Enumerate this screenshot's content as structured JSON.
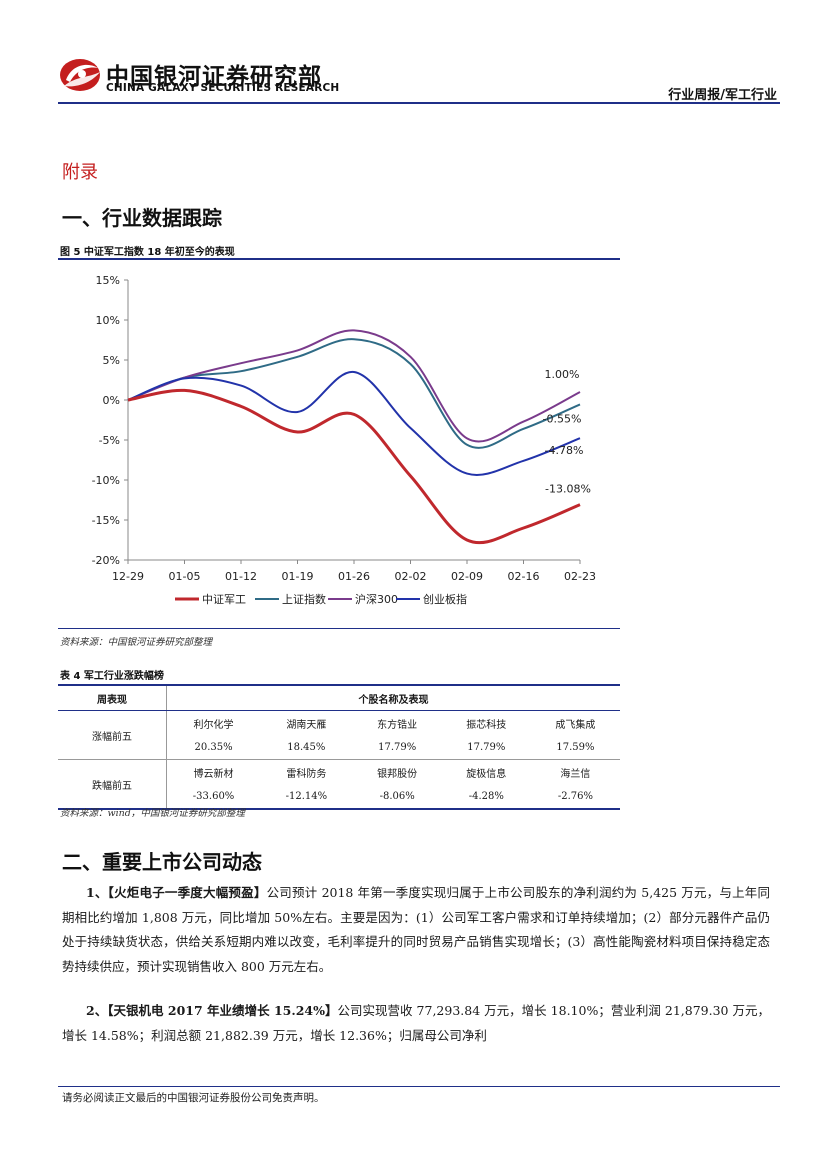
{
  "header": {
    "brand_cn": "中国银河证券研究部",
    "brand_en": "CHINA GALAXY SECURITIES RESEARCH",
    "tag": "行业周报/军工行业",
    "brand_color": "#c41e1e",
    "rule_color": "#1f2f88"
  },
  "appendix_label": "附录",
  "section1": {
    "title": "一、行业数据跟踪",
    "figure_caption": "图 5 中证军工指数 18 年初至今的表现",
    "figure_source": "资料来源：中国银河证券研究部整理",
    "table_caption": "表 4 军工行业涨跌幅榜",
    "table_source": "资料来源：wind，中国银河证券研究部整理"
  },
  "chart_data": {
    "type": "line",
    "title": "",
    "xlabel": "",
    "ylabel": "",
    "x": [
      "12-29",
      "01-05",
      "01-12",
      "01-19",
      "01-26",
      "02-02",
      "02-09",
      "02-16",
      "02-23"
    ],
    "y_ticks": [
      "15%",
      "10%",
      "5%",
      "0%",
      "-5%",
      "-10%",
      "-15%",
      "-20%"
    ],
    "ylim": [
      -20,
      15
    ],
    "grid": false,
    "legend_position": "bottom",
    "series": [
      {
        "name": "中证军工",
        "color": "#c0282d",
        "values": [
          0,
          1.2,
          -0.8,
          -4.0,
          -1.8,
          -9.5,
          -17.5,
          -16.0,
          -13.08
        ],
        "end_label": "-13.08%"
      },
      {
        "name": "上证指数",
        "color": "#2f6b86",
        "values": [
          0,
          2.8,
          3.6,
          5.4,
          7.6,
          4.5,
          -5.6,
          -3.6,
          -0.55
        ],
        "end_label": "-0.55%"
      },
      {
        "name": "沪深300",
        "color": "#7a3b8c",
        "values": [
          0,
          2.8,
          4.6,
          6.2,
          8.7,
          5.4,
          -4.8,
          -2.7,
          1.0
        ],
        "end_label": "1.00%"
      },
      {
        "name": "创业板指",
        "color": "#2233aa",
        "values": [
          0,
          2.7,
          1.8,
          -1.5,
          3.5,
          -3.5,
          -9.2,
          -7.6,
          -4.78
        ],
        "end_label": "-4.78%"
      }
    ]
  },
  "table": {
    "headers": [
      "周表现",
      "个股名称及表现"
    ],
    "rows": [
      {
        "label": "涨幅前五",
        "names": [
          "利尔化学",
          "湖南天雁",
          "东方锆业",
          "振芯科技",
          "成飞集成"
        ],
        "values": [
          "20.35%",
          "18.45%",
          "17.79%",
          "17.79%",
          "17.59%"
        ]
      },
      {
        "label": "跌幅前五",
        "names": [
          "博云新材",
          "雷科防务",
          "银邦股份",
          "旋极信息",
          "海兰信"
        ],
        "values": [
          "-33.60%",
          "-12.14%",
          "-8.06%",
          "-4.28%",
          "-2.76%"
        ]
      }
    ]
  },
  "section2": {
    "title": "二、重要上市公司动态",
    "item1_head": "1、【火炬电子一季度大幅预盈】",
    "item1_body": "公司预计 2018 年第一季度实现归属于上市公司股东的净利润约为 5,425 万元，与上年同期相比约增加 1,808 万元，同比增加 50%左右。主要是因为：(1）公司军工客户需求和订单持续增加；(2）部分元器件产品仍处于持续缺货状态，供给关系短期内难以改变，毛利率提升的同时贸易产品销售实现增长；(3）高性能陶瓷材料项目保持稳定态势持续供应，预计实现销售收入 800 万元左右。",
    "item2_head": "2、【天银机电 2017 年业绩增长 15.24%】",
    "item2_body": "公司实现营收 77,293.84 万元，增长 18.10%；营业利润 21,879.30 万元，增长 14.58%；利润总额 21,882.39 万元，增长 12.36%；归属母公司净利"
  },
  "footer": "请务必阅读正文最后的中国银河证券股份公司免责声明。"
}
